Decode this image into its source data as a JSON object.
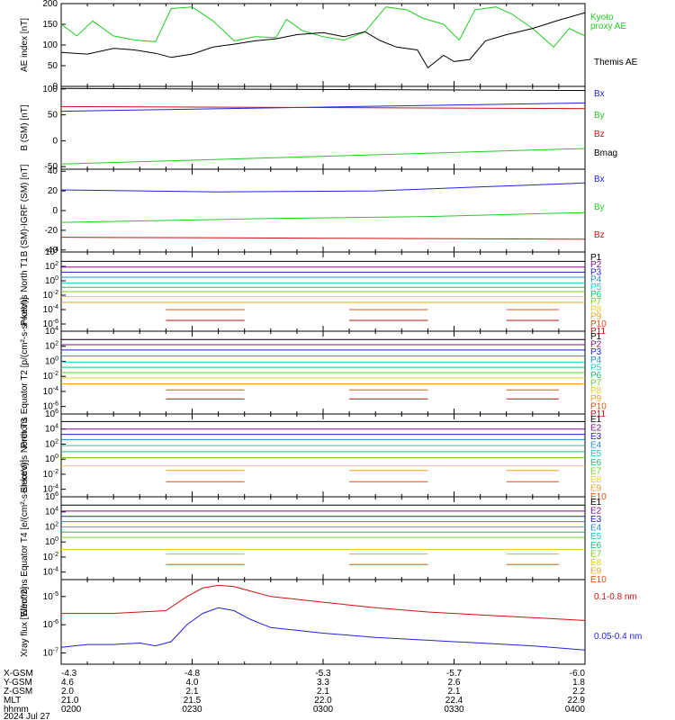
{
  "footer": {
    "rows": [
      {
        "label": "X-GSM",
        "values": [
          "-4.3",
          "-4.8",
          "-5.3",
          "-5.7",
          "-6.0"
        ]
      },
      {
        "label": "Y-GSM",
        "values": [
          "4.6",
          "4.0",
          "3.3",
          "2.6",
          "1.8"
        ]
      },
      {
        "label": "Z-GSM",
        "values": [
          "2.0",
          "2.1",
          "2.1",
          "2.1",
          "2.2"
        ]
      },
      {
        "label": "MLT",
        "values": [
          "21.0",
          "21.5",
          "22.0",
          "22.4",
          "22.9"
        ]
      },
      {
        "label": "hhmm",
        "values": [
          "0200",
          "0230",
          "0300",
          "0330",
          "0400"
        ]
      }
    ],
    "date": "2024 Jul 27"
  },
  "colors": {
    "black": "#000000",
    "green": "#22cc22",
    "blue": "#2222dd",
    "red": "#cc1111",
    "ch": [
      "#000000",
      "#7a1090",
      "#2020c8",
      "#1e90d0",
      "#18c8c8",
      "#18c070",
      "#70d020",
      "#e8d020",
      "#f0a020",
      "#e05010",
      "#c01010"
    ]
  },
  "chart_data": [
    {
      "id": "ae",
      "type": "line",
      "ylabel": "AE index [nT]",
      "ylim": [
        0,
        200
      ],
      "yticks": [
        "0",
        "50",
        "100",
        "150",
        "200"
      ],
      "legend": [
        "Kyoto proxy AE",
        "Themis AE"
      ],
      "series": [
        {
          "name": "Kyoto proxy AE",
          "color": "green",
          "x": [
            0,
            3,
            6,
            10,
            14,
            18,
            21,
            25,
            29,
            33,
            37,
            41,
            43,
            46,
            50,
            54,
            58,
            62,
            66,
            69,
            73,
            76,
            79,
            83,
            86,
            90,
            94,
            97,
            100
          ],
          "y": [
            150,
            122,
            158,
            122,
            112,
            108,
            188,
            192,
            158,
            110,
            120,
            118,
            162,
            135,
            120,
            112,
            132,
            192,
            185,
            165,
            150,
            112,
            185,
            192,
            175,
            140,
            95,
            140,
            122
          ]
        },
        {
          "name": "Themis AE",
          "color": "black",
          "x": [
            0,
            5,
            10,
            14,
            18,
            21,
            25,
            29,
            33,
            37,
            41,
            45,
            50,
            54,
            58,
            61,
            64,
            68,
            70,
            73,
            75,
            78,
            81,
            85,
            90,
            95,
            100
          ],
          "y": [
            82,
            78,
            92,
            88,
            80,
            70,
            78,
            95,
            102,
            110,
            115,
            125,
            130,
            120,
            132,
            110,
            95,
            88,
            45,
            75,
            60,
            65,
            110,
            125,
            140,
            160,
            178
          ]
        }
      ]
    },
    {
      "id": "bsm",
      "type": "line",
      "ylabel": "B (SM) [nT]",
      "ylim": [
        -55,
        105
      ],
      "yticks": [
        "-50",
        "0",
        "50",
        "100"
      ],
      "legend": [
        "Bx",
        "By",
        "Bz",
        "Bmag"
      ],
      "series": [
        {
          "name": "Bx",
          "color": "blue",
          "x": [
            0,
            100
          ],
          "y": [
            57,
            73
          ]
        },
        {
          "name": "By",
          "color": "green",
          "x": [
            0,
            100
          ],
          "y": [
            -45,
            -15
          ]
        },
        {
          "name": "Bz",
          "color": "red",
          "x": [
            0,
            100
          ],
          "y": [
            66,
            62
          ]
        },
        {
          "name": "Bmag",
          "color": "black",
          "x": [
            0,
            100
          ],
          "y": [
            101,
            97
          ]
        }
      ]
    },
    {
      "id": "bigrf",
      "type": "line",
      "ylabel": "B (SM)-IGRF (SM) [nT]",
      "ylim": [
        -42,
        42
      ],
      "yticks": [
        "-40",
        "-20",
        "0",
        "20",
        "40"
      ],
      "legend": [
        "Bx",
        "By",
        "Bz"
      ],
      "series": [
        {
          "name": "Bx",
          "color": "blue",
          "x": [
            0,
            30,
            60,
            100
          ],
          "y": [
            21,
            19,
            20,
            28
          ]
        },
        {
          "name": "By",
          "color": "green",
          "x": [
            0,
            40,
            70,
            100
          ],
          "y": [
            -12,
            -8,
            -6,
            -2
          ]
        },
        {
          "name": "Bz",
          "color": "red",
          "x": [
            0,
            50,
            100
          ],
          "y": [
            -27,
            -28,
            -29
          ]
        }
      ]
    },
    {
      "id": "pn",
      "type": "line",
      "log": true,
      "ylabel": "Protons North T1",
      "ylim": [
        -7,
        4
      ],
      "ytick_exps": [
        -6,
        -4,
        -2,
        0,
        2,
        4
      ],
      "legend": [
        "P1",
        "P2",
        "P3",
        "P4",
        "P5",
        "P6",
        "P7",
        "P8",
        "P9",
        "P10",
        "P11"
      ],
      "levels": [
        2.7,
        1.9,
        1.2,
        0.5,
        -0.3,
        -0.9,
        -1.5,
        -2.2,
        -3.0,
        -4.0,
        -5.5
      ]
    },
    {
      "id": "pe",
      "type": "line",
      "log": true,
      "ylabel": "Protons Equator T2 [p/(cm²-s-sr-keV)]",
      "ylim": [
        -7,
        4
      ],
      "ytick_exps": [
        -6,
        -4,
        -2,
        0,
        2,
        4
      ],
      "legend": [
        "P1",
        "P2",
        "P3",
        "P4",
        "P5",
        "P6",
        "P7",
        "P8",
        "P9",
        "P10",
        "P11"
      ],
      "levels": [
        2.9,
        2.2,
        1.5,
        0.7,
        -0.1,
        -0.8,
        -1.5,
        -2.2,
        -3.0,
        -3.8,
        -5.0
      ]
    },
    {
      "id": "en",
      "type": "line",
      "log": true,
      "ylabel": "Electrons North T3",
      "ylim": [
        -5,
        6
      ],
      "ytick_exps": [
        -4,
        -2,
        0,
        2,
        4,
        6
      ],
      "legend": [
        "E1",
        "E2",
        "E3",
        "E4",
        "E5",
        "E6",
        "E7",
        "E8",
        "E9",
        "E10"
      ],
      "levels": [
        5.0,
        4.0,
        3.3,
        2.6,
        1.8,
        1.0,
        0.2,
        -0.9,
        -1.5,
        -3.0
      ]
    },
    {
      "id": "ee",
      "type": "line",
      "log": true,
      "ylabel": "Electrons Equator T4 [e/(cm²-s-sr-keV)]",
      "ylim": [
        -5,
        6
      ],
      "ytick_exps": [
        -4,
        -2,
        0,
        2,
        4,
        6
      ],
      "legend": [
        "E1",
        "E2",
        "E3",
        "E4",
        "E5",
        "E6",
        "E7",
        "E8",
        "E9",
        "E10"
      ],
      "levels": [
        4.9,
        4.1,
        3.4,
        2.7,
        2.0,
        1.3,
        0.6,
        -1.0,
        -1.6,
        -3.0
      ]
    },
    {
      "id": "xray",
      "type": "line",
      "log": true,
      "ylabel": "Xray flux [W/m^2]",
      "ylim": [
        -7.4,
        -4.4
      ],
      "ytick_exps": [
        -7,
        -6,
        -5
      ],
      "legend": [
        "0.1-0.8 nm",
        "0.05-0.4 nm"
      ],
      "series": [
        {
          "name": "0.1-0.8 nm",
          "color": "red",
          "x": [
            0,
            5,
            10,
            15,
            20,
            24,
            27,
            30,
            33,
            36,
            40,
            50,
            60,
            70,
            80,
            90,
            100
          ],
          "y": [
            -5.6,
            -5.6,
            -5.6,
            -5.55,
            -5.5,
            -5.0,
            -4.7,
            -4.6,
            -4.65,
            -4.8,
            -5.0,
            -5.2,
            -5.4,
            -5.55,
            -5.65,
            -5.75,
            -5.85
          ]
        },
        {
          "name": "0.05-0.4 nm",
          "color": "blue",
          "x": [
            0,
            5,
            10,
            15,
            18,
            21,
            24,
            27,
            30,
            33,
            36,
            40,
            50,
            60,
            70,
            80,
            90,
            100
          ],
          "y": [
            -6.8,
            -6.7,
            -6.7,
            -6.65,
            -6.75,
            -6.6,
            -6.0,
            -5.6,
            -5.4,
            -5.5,
            -5.8,
            -6.1,
            -6.3,
            -6.45,
            -6.55,
            -6.65,
            -6.75,
            -6.9
          ]
        }
      ]
    }
  ]
}
